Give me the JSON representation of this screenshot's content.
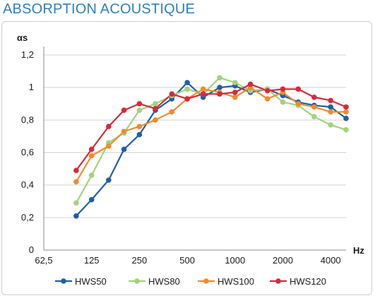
{
  "title": "ABSORPTION ACOUSTIQUE",
  "chart_data": {
    "type": "line",
    "ylabel": "αs",
    "xlabel": "Hz",
    "x_scale": "log",
    "ylim": [
      0,
      1.2
    ],
    "y_ticks": [
      "0",
      "0,2",
      "0,4",
      "0,6",
      "0,8",
      "1",
      "1,2"
    ],
    "y_tick_values": [
      0,
      0.2,
      0.4,
      0.6,
      0.8,
      1.0,
      1.2
    ],
    "x_ticks": [
      "62,5",
      "125",
      "250",
      "500",
      "1000",
      "2000",
      "4000"
    ],
    "x_tick_values": [
      62.5,
      125,
      250,
      500,
      1000,
      2000,
      4000
    ],
    "x": [
      100,
      125,
      160,
      200,
      250,
      315,
      400,
      500,
      630,
      800,
      1000,
      1250,
      1600,
      2000,
      2500,
      3150,
      4000,
      5000
    ],
    "grid": "horizontal",
    "legend_position": "bottom",
    "series": [
      {
        "name": "HWS50",
        "color": "#1f5fa6",
        "values": [
          0.21,
          0.31,
          0.43,
          0.62,
          0.71,
          0.86,
          0.93,
          1.03,
          0.94,
          1.0,
          1.01,
          0.97,
          0.99,
          0.95,
          0.91,
          0.89,
          0.88,
          0.81
        ]
      },
      {
        "name": "HWS80",
        "color": "#9fd47e",
        "values": [
          0.29,
          0.46,
          0.66,
          0.72,
          0.86,
          0.9,
          0.95,
          0.99,
          0.96,
          1.06,
          1.03,
          0.98,
          0.99,
          0.91,
          0.89,
          0.82,
          0.77,
          0.74
        ]
      },
      {
        "name": "HWS100",
        "color": "#f28a2e",
        "values": [
          0.42,
          0.58,
          0.64,
          0.73,
          0.76,
          0.8,
          0.85,
          0.93,
          0.99,
          0.97,
          0.94,
          1.0,
          0.93,
          0.97,
          0.9,
          0.88,
          0.85,
          0.85
        ]
      },
      {
        "name": "HWS120",
        "color": "#d62a3a",
        "values": [
          0.49,
          0.62,
          0.76,
          0.86,
          0.9,
          0.87,
          0.96,
          0.93,
          0.96,
          0.96,
          0.97,
          1.02,
          0.98,
          0.99,
          0.99,
          0.94,
          0.92,
          0.88
        ]
      }
    ]
  }
}
